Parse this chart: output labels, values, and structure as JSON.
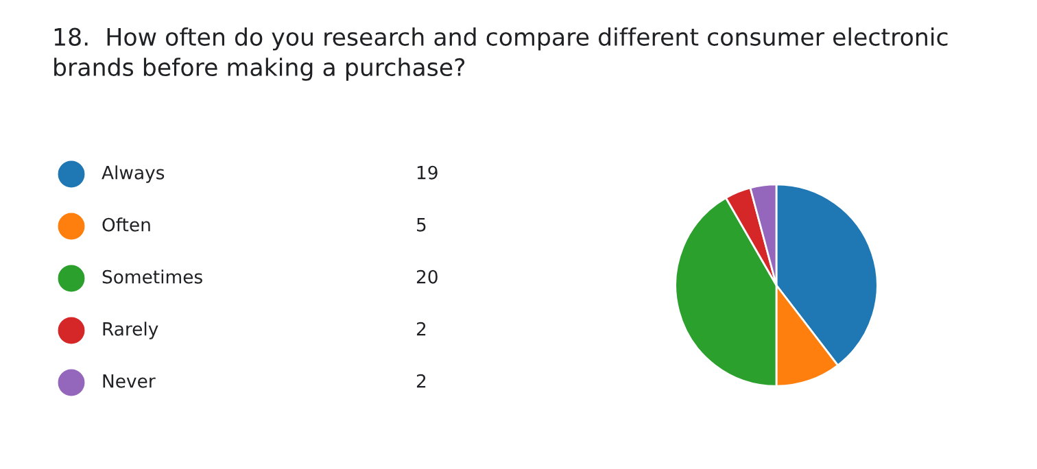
{
  "chart_data": {
    "type": "pie",
    "title": "18.  How often do you research and compare different consumer electronic brands before making a purchase?",
    "categories": [
      "Always",
      "Often",
      "Sometimes",
      "Rarely",
      "Never"
    ],
    "values": [
      19,
      5,
      20,
      2,
      2
    ],
    "colors": [
      "#1f77b4",
      "#ff7f0e",
      "#2ca02c",
      "#d62728",
      "#9467bd"
    ],
    "data_labels": true,
    "legend": "left"
  }
}
